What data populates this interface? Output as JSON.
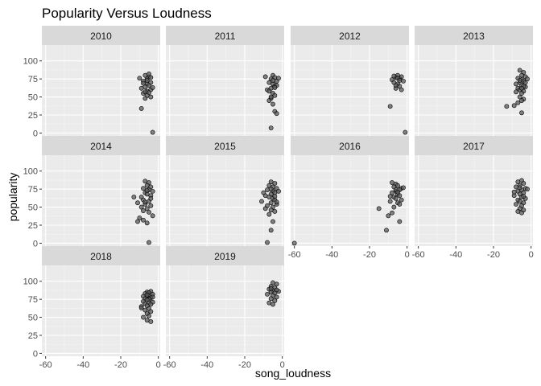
{
  "chart_data": {
    "type": "scatter",
    "title": "Popularity Versus Loudness",
    "xlabel": "song_loudness",
    "ylabel": "popularity",
    "xlim": [
      -62,
      1
    ],
    "ylim": [
      -4,
      122
    ],
    "x_ticks": [
      -60,
      -40,
      -20,
      0
    ],
    "y_ticks": [
      0,
      25,
      50,
      75,
      100
    ],
    "grid": true,
    "facet_by": "year",
    "colors": {
      "panel": "#ebebeb",
      "strip": "#d9d9d9",
      "grid_major": "#ffffff",
      "point_fill": "#595959",
      "point_stroke": "#000000"
    },
    "panels": [
      {
        "label": "2010",
        "points": [
          [
            -7,
            80
          ],
          [
            -5,
            78
          ],
          [
            -6,
            75
          ],
          [
            -8,
            72
          ],
          [
            -4,
            70
          ],
          [
            -6,
            68
          ],
          [
            -5,
            66
          ],
          [
            -7,
            64
          ],
          [
            -9,
            62
          ],
          [
            -4,
            60
          ],
          [
            -6,
            58
          ],
          [
            -5,
            56
          ],
          [
            -3,
            63
          ],
          [
            -8,
            55
          ],
          [
            -6,
            52
          ],
          [
            -4,
            50
          ],
          [
            -7,
            48
          ],
          [
            -9,
            34
          ],
          [
            -3,
            1
          ],
          [
            -5,
            82
          ],
          [
            -10,
            76
          ],
          [
            -8,
            69
          ],
          [
            -6,
            73
          ],
          [
            -4,
            77
          ],
          [
            -7,
            57
          ]
        ]
      },
      {
        "label": "2011",
        "points": [
          [
            -5,
            80
          ],
          [
            -4,
            77
          ],
          [
            -6,
            75
          ],
          [
            -3,
            72
          ],
          [
            -7,
            70
          ],
          [
            -5,
            68
          ],
          [
            -4,
            65
          ],
          [
            -6,
            62
          ],
          [
            -8,
            60
          ],
          [
            -5,
            55
          ],
          [
            -4,
            52
          ],
          [
            -6,
            48
          ],
          [
            -7,
            45
          ],
          [
            -5,
            40
          ],
          [
            -4,
            30
          ],
          [
            -3,
            27
          ],
          [
            -6,
            7
          ],
          [
            -9,
            78
          ],
          [
            -2,
            76
          ],
          [
            -5,
            73
          ],
          [
            -3,
            66
          ],
          [
            -7,
            58
          ],
          [
            -4,
            63
          ],
          [
            -6,
            50
          ]
        ]
      },
      {
        "label": "2012",
        "points": [
          [
            -5,
            80
          ],
          [
            -3,
            78
          ],
          [
            -6,
            77
          ],
          [
            -4,
            75
          ],
          [
            -8,
            74
          ],
          [
            -2,
            72
          ],
          [
            -7,
            70
          ],
          [
            -5,
            68
          ],
          [
            -4,
            65
          ],
          [
            -6,
            62
          ],
          [
            -3,
            60
          ],
          [
            -9,
            37
          ],
          [
            -1,
            1
          ],
          [
            -5,
            76
          ],
          [
            -7,
            79
          ],
          [
            -4,
            73
          ],
          [
            -6,
            66
          ]
        ]
      },
      {
        "label": "2013",
        "points": [
          [
            -6,
            87
          ],
          [
            -4,
            84
          ],
          [
            -5,
            80
          ],
          [
            -3,
            78
          ],
          [
            -7,
            76
          ],
          [
            -5,
            74
          ],
          [
            -4,
            72
          ],
          [
            -6,
            70
          ],
          [
            -8,
            68
          ],
          [
            -5,
            66
          ],
          [
            -3,
            64
          ],
          [
            -7,
            62
          ],
          [
            -6,
            60
          ],
          [
            -4,
            58
          ],
          [
            -5,
            55
          ],
          [
            -6,
            50
          ],
          [
            -4,
            47
          ],
          [
            -5,
            45
          ],
          [
            -7,
            42
          ],
          [
            -13,
            37
          ],
          [
            -5,
            28
          ],
          [
            -9,
            38
          ],
          [
            -3,
            70
          ],
          [
            -6,
            73
          ],
          [
            -4,
            65
          ],
          [
            -8,
            57
          ],
          [
            -2,
            75
          ],
          [
            -5,
            62
          ]
        ]
      },
      {
        "label": "2014",
        "points": [
          [
            -7,
            86
          ],
          [
            -5,
            84
          ],
          [
            -6,
            80
          ],
          [
            -4,
            78
          ],
          [
            -8,
            76
          ],
          [
            -5,
            74
          ],
          [
            -3,
            72
          ],
          [
            -7,
            70
          ],
          [
            -6,
            68
          ],
          [
            -4,
            66
          ],
          [
            -9,
            64
          ],
          [
            -13,
            64
          ],
          [
            -8,
            60
          ],
          [
            -5,
            58
          ],
          [
            -11,
            56
          ],
          [
            -7,
            54
          ],
          [
            -4,
            52
          ],
          [
            -9,
            50
          ],
          [
            -6,
            48
          ],
          [
            -8,
            45
          ],
          [
            -5,
            43
          ],
          [
            -3,
            38
          ],
          [
            -10,
            35
          ],
          [
            -8,
            32
          ],
          [
            -11,
            30
          ],
          [
            -6,
            28
          ],
          [
            -5,
            1
          ],
          [
            -4,
            62
          ],
          [
            -7,
            57
          ],
          [
            -6,
            73
          ]
        ]
      },
      {
        "label": "2015",
        "points": [
          [
            -6,
            85
          ],
          [
            -4,
            83
          ],
          [
            -7,
            80
          ],
          [
            -5,
            78
          ],
          [
            -3,
            76
          ],
          [
            -8,
            74
          ],
          [
            -5,
            72
          ],
          [
            -4,
            70
          ],
          [
            -6,
            68
          ],
          [
            -9,
            66
          ],
          [
            -7,
            64
          ],
          [
            -5,
            62
          ],
          [
            -4,
            60
          ],
          [
            -11,
            58
          ],
          [
            -6,
            56
          ],
          [
            -3,
            54
          ],
          [
            -8,
            52
          ],
          [
            -5,
            50
          ],
          [
            -9,
            48
          ],
          [
            -6,
            46
          ],
          [
            -4,
            44
          ],
          [
            -7,
            40
          ],
          [
            -5,
            30
          ],
          [
            -6,
            18
          ],
          [
            -8,
            1
          ],
          [
            -2,
            72
          ],
          [
            -10,
            70
          ],
          [
            -4,
            65
          ],
          [
            -6,
            75
          ],
          [
            -3,
            57
          ]
        ]
      },
      {
        "label": "2016",
        "points": [
          [
            -60,
            0
          ],
          [
            -8,
            84
          ],
          [
            -6,
            82
          ],
          [
            -5,
            80
          ],
          [
            -7,
            78
          ],
          [
            -3,
            76
          ],
          [
            -4,
            74
          ],
          [
            -6,
            72
          ],
          [
            -8,
            70
          ],
          [
            -5,
            68
          ],
          [
            -4,
            66
          ],
          [
            -7,
            64
          ],
          [
            -6,
            62
          ],
          [
            -3,
            60
          ],
          [
            -9,
            58
          ],
          [
            -5,
            56
          ],
          [
            -4,
            54
          ],
          [
            -7,
            50
          ],
          [
            -8,
            42
          ],
          [
            -15,
            48
          ],
          [
            -10,
            38
          ],
          [
            -4,
            30
          ],
          [
            -11,
            18
          ],
          [
            -6,
            74
          ],
          [
            -2,
            77
          ],
          [
            -5,
            71
          ],
          [
            -9,
            65
          ]
        ]
      },
      {
        "label": "2017",
        "points": [
          [
            -5,
            87
          ],
          [
            -7,
            85
          ],
          [
            -4,
            83
          ],
          [
            -6,
            80
          ],
          [
            -8,
            78
          ],
          [
            -3,
            76
          ],
          [
            -5,
            74
          ],
          [
            -7,
            72
          ],
          [
            -4,
            70
          ],
          [
            -6,
            68
          ],
          [
            -9,
            66
          ],
          [
            -5,
            64
          ],
          [
            -3,
            62
          ],
          [
            -7,
            60
          ],
          [
            -6,
            58
          ],
          [
            -4,
            56
          ],
          [
            -8,
            54
          ],
          [
            -5,
            52
          ],
          [
            -6,
            48
          ],
          [
            -4,
            46
          ],
          [
            -7,
            44
          ],
          [
            -5,
            42
          ],
          [
            -2,
            75
          ],
          [
            -9,
            71
          ],
          [
            -6,
            77
          ],
          [
            -4,
            65
          ]
        ]
      },
      {
        "label": "2018",
        "points": [
          [
            -4,
            86
          ],
          [
            -6,
            85
          ],
          [
            -5,
            84
          ],
          [
            -7,
            83
          ],
          [
            -3,
            82
          ],
          [
            -5,
            80
          ],
          [
            -8,
            79
          ],
          [
            -6,
            78
          ],
          [
            -4,
            77
          ],
          [
            -7,
            76
          ],
          [
            -5,
            75
          ],
          [
            -6,
            74
          ],
          [
            -8,
            72
          ],
          [
            -3,
            71
          ],
          [
            -5,
            70
          ],
          [
            -7,
            69
          ],
          [
            -4,
            68
          ],
          [
            -6,
            66
          ],
          [
            -9,
            65
          ],
          [
            -5,
            62
          ],
          [
            -7,
            60
          ],
          [
            -4,
            58
          ],
          [
            -6,
            55
          ],
          [
            -5,
            52
          ],
          [
            -8,
            50
          ],
          [
            -6,
            46
          ],
          [
            -4,
            44
          ],
          [
            -9,
            63
          ],
          [
            -3,
            78
          ],
          [
            -6,
            81
          ]
        ]
      },
      {
        "label": "2019",
        "points": [
          [
            -5,
            98
          ],
          [
            -3,
            96
          ],
          [
            -6,
            93
          ],
          [
            -4,
            91
          ],
          [
            -7,
            89
          ],
          [
            -5,
            87
          ],
          [
            -2,
            86
          ],
          [
            -6,
            85
          ],
          [
            -4,
            84
          ],
          [
            -8,
            82
          ],
          [
            -5,
            80
          ],
          [
            -3,
            78
          ],
          [
            -6,
            76
          ],
          [
            -4,
            73
          ],
          [
            -7,
            70
          ],
          [
            -5,
            68
          ],
          [
            -3,
            88
          ],
          [
            -6,
            90
          ]
        ]
      }
    ]
  }
}
